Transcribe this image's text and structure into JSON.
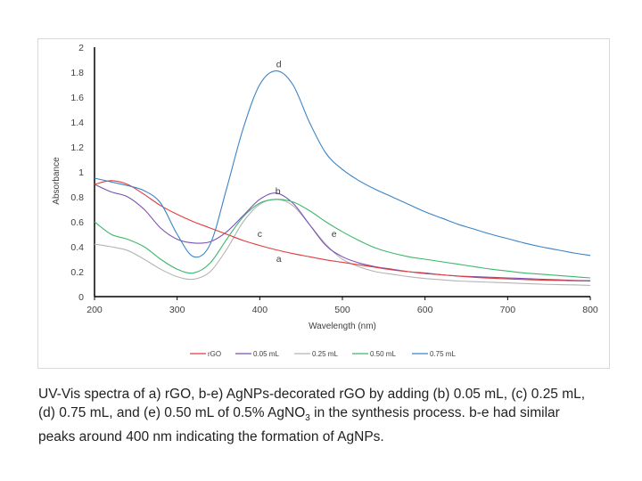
{
  "chart_data": {
    "type": "line",
    "title": "",
    "xlabel": "Wavelength (nm)",
    "ylabel": "Absorbance",
    "xlim": [
      200,
      800
    ],
    "ylim": [
      0,
      2
    ],
    "x_ticks": [
      "200",
      "300",
      "400",
      "500",
      "600",
      "700",
      "800"
    ],
    "y_ticks": [
      "0",
      "0.2",
      "0.4",
      "0.6",
      "0.8",
      "1",
      "1.2",
      "1.4",
      "1.6",
      "1.8",
      "2"
    ],
    "grid": false,
    "legend_position": "bottom",
    "series": [
      {
        "name": "rGO",
        "label": "a",
        "color": "#e03c3c",
        "x": [
          200,
          220,
          240,
          260,
          280,
          300,
          320,
          340,
          360,
          380,
          400,
          420,
          440,
          460,
          480,
          500,
          520,
          540,
          560,
          580,
          600,
          620,
          640,
          660,
          680,
          700,
          720,
          740,
          760,
          780,
          800
        ],
        "y": [
          0.9,
          0.93,
          0.9,
          0.82,
          0.73,
          0.66,
          0.6,
          0.55,
          0.5,
          0.45,
          0.41,
          0.375,
          0.345,
          0.32,
          0.295,
          0.275,
          0.255,
          0.235,
          0.215,
          0.2,
          0.185,
          0.175,
          0.165,
          0.155,
          0.148,
          0.142,
          0.137,
          0.133,
          0.13,
          0.127,
          0.125
        ]
      },
      {
        "name": "0.05 mL",
        "label": "b",
        "color": "#7b52b0",
        "x": [
          200,
          220,
          240,
          260,
          280,
          300,
          320,
          340,
          360,
          380,
          400,
          420,
          440,
          460,
          480,
          500,
          520,
          540,
          560,
          580,
          600,
          620,
          640,
          660,
          680,
          700,
          720,
          740,
          760,
          780,
          800
        ],
        "y": [
          0.9,
          0.84,
          0.8,
          0.7,
          0.55,
          0.46,
          0.43,
          0.44,
          0.52,
          0.65,
          0.78,
          0.83,
          0.75,
          0.58,
          0.41,
          0.32,
          0.27,
          0.24,
          0.22,
          0.2,
          0.19,
          0.175,
          0.165,
          0.16,
          0.155,
          0.15,
          0.145,
          0.14,
          0.135,
          0.13,
          0.128
        ]
      },
      {
        "name": "0.25 mL",
        "label": "c",
        "color": "#b4b4b4",
        "x": [
          200,
          220,
          240,
          260,
          280,
          300,
          320,
          340,
          360,
          380,
          400,
          420,
          440,
          460,
          480,
          500,
          520,
          540,
          560,
          580,
          600,
          620,
          640,
          660,
          680,
          700,
          720,
          740,
          760,
          780,
          800
        ],
        "y": [
          0.42,
          0.4,
          0.37,
          0.3,
          0.22,
          0.16,
          0.14,
          0.2,
          0.38,
          0.6,
          0.74,
          0.78,
          0.73,
          0.58,
          0.42,
          0.3,
          0.24,
          0.2,
          0.18,
          0.16,
          0.145,
          0.135,
          0.125,
          0.12,
          0.115,
          0.11,
          0.105,
          0.1,
          0.097,
          0.094,
          0.09
        ]
      },
      {
        "name": "0.50 mL",
        "label": "e",
        "color": "#3cb86a",
        "x": [
          200,
          220,
          240,
          260,
          280,
          300,
          320,
          340,
          360,
          380,
          400,
          420,
          440,
          460,
          480,
          500,
          520,
          540,
          560,
          580,
          600,
          620,
          640,
          660,
          680,
          700,
          720,
          740,
          760,
          780,
          800
        ],
        "y": [
          0.6,
          0.5,
          0.46,
          0.4,
          0.3,
          0.22,
          0.19,
          0.27,
          0.46,
          0.64,
          0.75,
          0.78,
          0.76,
          0.69,
          0.6,
          0.52,
          0.45,
          0.39,
          0.35,
          0.32,
          0.3,
          0.28,
          0.26,
          0.24,
          0.22,
          0.205,
          0.19,
          0.18,
          0.17,
          0.16,
          0.15
        ]
      },
      {
        "name": "0.75 mL",
        "label": "d",
        "color": "#3a83c6",
        "x": [
          200,
          220,
          240,
          260,
          280,
          300,
          320,
          340,
          360,
          380,
          400,
          420,
          440,
          460,
          480,
          500,
          520,
          540,
          560,
          580,
          600,
          620,
          640,
          660,
          680,
          700,
          720,
          740,
          760,
          780,
          800
        ],
        "y": [
          0.95,
          0.92,
          0.89,
          0.85,
          0.75,
          0.5,
          0.32,
          0.42,
          0.87,
          1.35,
          1.7,
          1.81,
          1.7,
          1.4,
          1.15,
          1.02,
          0.93,
          0.86,
          0.8,
          0.74,
          0.68,
          0.63,
          0.58,
          0.54,
          0.5,
          0.465,
          0.43,
          0.4,
          0.375,
          0.35,
          0.33
        ]
      }
    ]
  },
  "caption": {
    "line1": "UV-Vis spectra of a) rGO, b-e) AgNPs-decorated rGO by adding (b) 0.05 mL, (c) 0.25 mL,",
    "line2_before_sub": "(d) 0.75 mL, and (e) 0.50 mL of 0.5% AgNO",
    "line2_sub": "3",
    "line2_after_sub": " in the synthesis process. b-e had similar",
    "line3": "peaks around 400 nm indicating the formation of AgNPs."
  }
}
